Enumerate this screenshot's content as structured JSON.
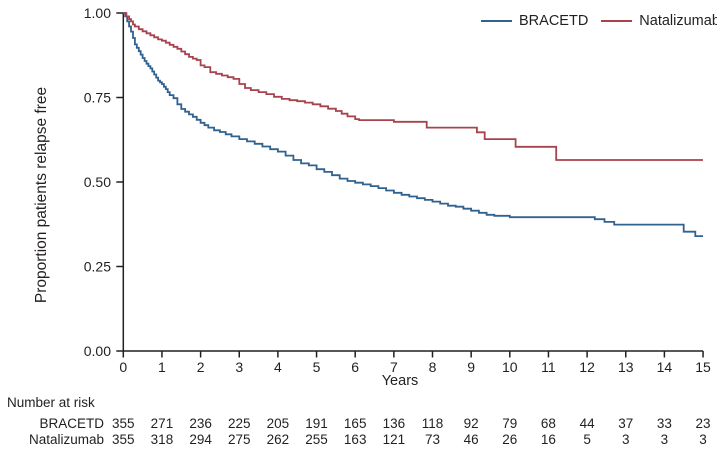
{
  "chart_data": {
    "type": "line",
    "subtype": "kaplan-meier-step",
    "title": "",
    "xlabel": "Years",
    "ylabel": "Proportion patients relapse free",
    "xlim": [
      0,
      15
    ],
    "ylim": [
      0.0,
      1.0
    ],
    "grid": false,
    "legend_position": "top-right",
    "x_ticks": [
      "0",
      "1",
      "2",
      "3",
      "4",
      "5",
      "6",
      "7",
      "8",
      "9",
      "10",
      "11",
      "12",
      "13",
      "14",
      "15"
    ],
    "x_tick_values": [
      0,
      1,
      2,
      3,
      4,
      5,
      6,
      7,
      8,
      9,
      10,
      11,
      12,
      13,
      14,
      15
    ],
    "y_ticks": [
      "0.00",
      "0.25",
      "0.50",
      "0.75",
      "1.00"
    ],
    "y_tick_values": [
      0,
      0.25,
      0.5,
      0.75,
      1.0
    ],
    "series": [
      {
        "name": "BRACETD",
        "color": "#31628f",
        "points": [
          [
            0,
            1.0
          ],
          [
            0.05,
            0.99
          ],
          [
            0.1,
            0.975
          ],
          [
            0.15,
            0.96
          ],
          [
            0.2,
            0.945
          ],
          [
            0.25,
            0.926
          ],
          [
            0.3,
            0.907
          ],
          [
            0.35,
            0.897
          ],
          [
            0.4,
            0.887
          ],
          [
            0.45,
            0.877
          ],
          [
            0.5,
            0.867
          ],
          [
            0.55,
            0.858
          ],
          [
            0.6,
            0.85
          ],
          [
            0.65,
            0.843
          ],
          [
            0.7,
            0.836
          ],
          [
            0.75,
            0.827
          ],
          [
            0.8,
            0.818
          ],
          [
            0.85,
            0.809
          ],
          [
            0.9,
            0.8
          ],
          [
            0.95,
            0.795
          ],
          [
            1.0,
            0.79
          ],
          [
            1.05,
            0.782
          ],
          [
            1.1,
            0.775
          ],
          [
            1.15,
            0.766
          ],
          [
            1.2,
            0.757
          ],
          [
            1.3,
            0.748
          ],
          [
            1.4,
            0.73
          ],
          [
            1.5,
            0.716
          ],
          [
            1.6,
            0.708
          ],
          [
            1.7,
            0.7
          ],
          [
            1.8,
            0.693
          ],
          [
            1.9,
            0.684
          ],
          [
            2.0,
            0.675
          ],
          [
            2.1,
            0.668
          ],
          [
            2.2,
            0.661
          ],
          [
            2.35,
            0.653
          ],
          [
            2.5,
            0.648
          ],
          [
            2.65,
            0.641
          ],
          [
            2.8,
            0.635
          ],
          [
            3.0,
            0.627
          ],
          [
            3.2,
            0.62
          ],
          [
            3.4,
            0.613
          ],
          [
            3.6,
            0.605
          ],
          [
            3.8,
            0.597
          ],
          [
            4.0,
            0.59
          ],
          [
            4.2,
            0.578
          ],
          [
            4.4,
            0.565
          ],
          [
            4.6,
            0.555
          ],
          [
            4.8,
            0.549
          ],
          [
            5.0,
            0.538
          ],
          [
            5.2,
            0.53
          ],
          [
            5.4,
            0.52
          ],
          [
            5.6,
            0.51
          ],
          [
            5.8,
            0.503
          ],
          [
            6.0,
            0.498
          ],
          [
            6.2,
            0.493
          ],
          [
            6.4,
            0.488
          ],
          [
            6.6,
            0.482
          ],
          [
            6.8,
            0.475
          ],
          [
            7.0,
            0.468
          ],
          [
            7.2,
            0.462
          ],
          [
            7.4,
            0.457
          ],
          [
            7.6,
            0.452
          ],
          [
            7.8,
            0.447
          ],
          [
            8.0,
            0.442
          ],
          [
            8.2,
            0.436
          ],
          [
            8.4,
            0.43
          ],
          [
            8.6,
            0.427
          ],
          [
            8.8,
            0.421
          ],
          [
            9.0,
            0.415
          ],
          [
            9.2,
            0.409
          ],
          [
            9.4,
            0.403
          ],
          [
            9.6,
            0.4
          ],
          [
            10.0,
            0.396
          ],
          [
            12.2,
            0.39
          ],
          [
            12.45,
            0.382
          ],
          [
            12.7,
            0.374
          ],
          [
            14.5,
            0.353
          ],
          [
            14.8,
            0.34
          ],
          [
            15.0,
            0.34
          ]
        ]
      },
      {
        "name": "Natalizumab",
        "color": "#a6434c",
        "points": [
          [
            0,
            1.0
          ],
          [
            0.08,
            0.99
          ],
          [
            0.15,
            0.982
          ],
          [
            0.2,
            0.975
          ],
          [
            0.25,
            0.966
          ],
          [
            0.3,
            0.96
          ],
          [
            0.4,
            0.952
          ],
          [
            0.5,
            0.946
          ],
          [
            0.6,
            0.94
          ],
          [
            0.7,
            0.934
          ],
          [
            0.8,
            0.928
          ],
          [
            0.9,
            0.922
          ],
          [
            1.0,
            0.918
          ],
          [
            1.1,
            0.912
          ],
          [
            1.2,
            0.906
          ],
          [
            1.3,
            0.9
          ],
          [
            1.4,
            0.894
          ],
          [
            1.5,
            0.886
          ],
          [
            1.6,
            0.878
          ],
          [
            1.7,
            0.87
          ],
          [
            1.8,
            0.865
          ],
          [
            1.9,
            0.861
          ],
          [
            2.0,
            0.845
          ],
          [
            2.1,
            0.84
          ],
          [
            2.25,
            0.825
          ],
          [
            2.4,
            0.82
          ],
          [
            2.55,
            0.815
          ],
          [
            2.7,
            0.81
          ],
          [
            2.85,
            0.805
          ],
          [
            3.0,
            0.79
          ],
          [
            3.15,
            0.778
          ],
          [
            3.3,
            0.772
          ],
          [
            3.5,
            0.766
          ],
          [
            3.7,
            0.76
          ],
          [
            3.9,
            0.752
          ],
          [
            4.1,
            0.746
          ],
          [
            4.3,
            0.742
          ],
          [
            4.5,
            0.739
          ],
          [
            4.7,
            0.735
          ],
          [
            4.9,
            0.73
          ],
          [
            5.1,
            0.724
          ],
          [
            5.3,
            0.717
          ],
          [
            5.5,
            0.71
          ],
          [
            5.65,
            0.702
          ],
          [
            5.8,
            0.694
          ],
          [
            6.0,
            0.686
          ],
          [
            6.1,
            0.683
          ],
          [
            7.0,
            0.678
          ],
          [
            7.85,
            0.661
          ],
          [
            9.15,
            0.647
          ],
          [
            9.35,
            0.627
          ],
          [
            10.15,
            0.604
          ],
          [
            11.2,
            0.565
          ],
          [
            15.0,
            0.565
          ]
        ]
      }
    ]
  },
  "risk_table": {
    "title": "Number at risk",
    "rows": [
      {
        "label": "BRACETD",
        "counts": [
          355,
          271,
          236,
          225,
          205,
          191,
          165,
          136,
          118,
          92,
          79,
          68,
          44,
          37,
          33,
          23
        ]
      },
      {
        "label": "Natalizumab",
        "counts": [
          355,
          318,
          294,
          275,
          262,
          255,
          163,
          121,
          73,
          46,
          26,
          16,
          5,
          3,
          3,
          3
        ]
      }
    ]
  },
  "colors": {
    "axis": "#231f20",
    "text": "#231f20",
    "background": "#ffffff",
    "bracetd_line": "#31628f",
    "natalizumab_line": "#a6434c"
  }
}
